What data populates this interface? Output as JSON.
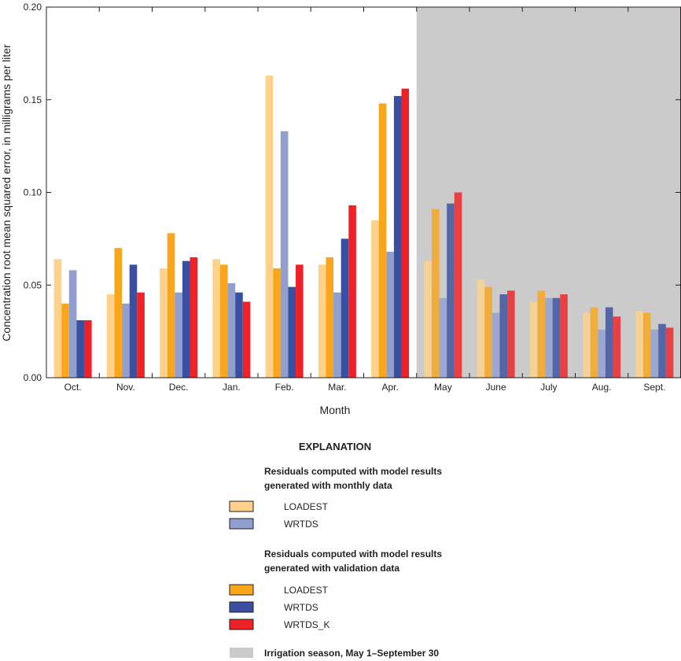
{
  "chart_data": {
    "type": "bar",
    "xlabel": "Month",
    "ylabel": "Concentration root mean squared error, in milligrams per liter",
    "ylim": [
      0,
      0.2
    ],
    "yticks": [
      "0.00",
      "0.05",
      "0.10",
      "0.15",
      "0.20"
    ],
    "ytick_values": [
      0,
      0.05,
      0.1,
      0.15,
      0.2
    ],
    "grid": false,
    "categories": [
      "Oct.",
      "Nov.",
      "Dec.",
      "Jan.",
      "Feb.",
      "Mar.",
      "Apr.",
      "May",
      "June",
      "July",
      "Aug.",
      "Sept."
    ],
    "series": [
      {
        "name": "LOADEST",
        "group": "monthly",
        "color": "#fed28a",
        "values": [
          0.064,
          0.045,
          0.059,
          0.064,
          0.163,
          0.061,
          0.085,
          0.063,
          0.053,
          0.041,
          0.035,
          0.036
        ]
      },
      {
        "name": "LOADEST",
        "group": "validation",
        "color": "#f9a61c",
        "values": [
          0.04,
          0.07,
          0.078,
          0.061,
          0.059,
          0.065,
          0.148,
          0.091,
          0.049,
          0.047,
          0.038,
          0.035
        ]
      },
      {
        "name": "WRTDS",
        "group": "monthly",
        "color": "#919fcf",
        "values": [
          0.058,
          0.04,
          0.046,
          0.051,
          0.133,
          0.046,
          0.068,
          0.043,
          0.035,
          0.043,
          0.026,
          0.026
        ]
      },
      {
        "name": "WRTDS",
        "group": "validation",
        "color": "#3a4f9f",
        "values": [
          0.031,
          0.061,
          0.063,
          0.046,
          0.049,
          0.075,
          0.152,
          0.094,
          0.045,
          0.043,
          0.038,
          0.029
        ]
      },
      {
        "name": "WRTDS_K",
        "group": "validation",
        "color": "#ee2226",
        "values": [
          0.031,
          0.046,
          0.065,
          0.041,
          0.061,
          0.093,
          0.156,
          0.1,
          0.047,
          0.045,
          0.033,
          0.027
        ]
      }
    ],
    "shaded_region": {
      "from_category": "May",
      "to_category": "Sept.",
      "color": "#cbcbcb"
    },
    "legend": {
      "placement": "bottom-center",
      "heading": "EXPLANATION",
      "monthly_heading_line1": "Residuals computed with model results",
      "monthly_heading_line2": "generated with monthly data",
      "validation_heading_line1": "Residuals computed with model results",
      "validation_heading_line2": "generated with validation data",
      "irrigation_label": "Irrigation season, May 1–September 30"
    }
  }
}
